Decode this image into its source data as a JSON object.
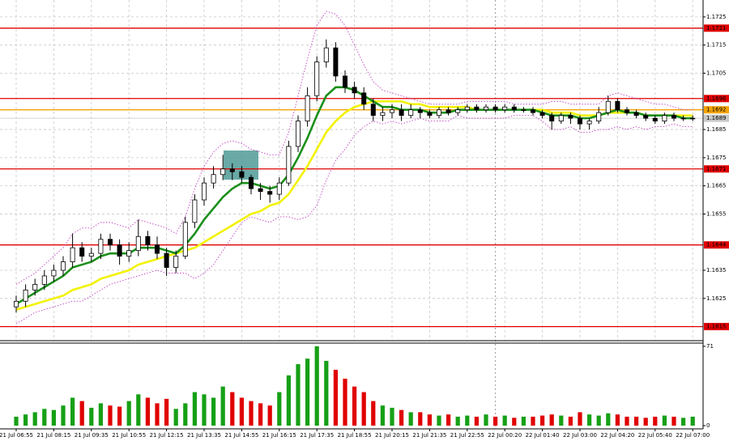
{
  "chart_data": [
    {
      "type": "candlestick",
      "categories": [
        "21 Jul 06:55",
        null,
        null,
        null,
        "21 Jul 08:15",
        null,
        null,
        null,
        "21 Jul 09:35",
        null,
        null,
        null,
        "21 Jul 10:55",
        null,
        null,
        null,
        "21 Jul 12:15",
        null,
        null,
        null,
        "21 Jul 13:35",
        null,
        null,
        null,
        "21 Jul 14:55",
        null,
        null,
        null,
        "21 Jul 16:15",
        null,
        null,
        null,
        "21 Jul 17:35",
        null,
        null,
        null,
        "21 Jul 18:55",
        null,
        null,
        null,
        "21 Jul 20:15",
        null,
        null,
        null,
        "21 Jul 21:35",
        null,
        null,
        null,
        "21 Jul 22:55",
        null,
        null,
        null,
        "22 Jul 00:20",
        null,
        null,
        null,
        "22 Jul 01:40",
        null,
        null,
        null,
        "22 Jul 03:00",
        null,
        null,
        null,
        "22 Jul 04:20",
        null,
        null,
        null,
        "22 Jul 05:40",
        null,
        null,
        null,
        "22 Jul 07:00"
      ],
      "open": [
        1.1622,
        1.1624,
        1.1628,
        1.163,
        1.1633,
        1.1635,
        1.1638,
        1.1643,
        1.164,
        1.1641,
        1.1646,
        1.1644,
        1.164,
        1.1642,
        1.1647,
        1.1644,
        1.1641,
        1.1636,
        1.164,
        1.1652,
        1.166,
        1.1666,
        1.1669,
        1.1671,
        1.167,
        1.1668,
        1.1664,
        1.1663,
        1.1662,
        1.1666,
        1.1679,
        1.1688,
        1.1697,
        1.1709,
        1.1714,
        1.1704,
        1.17,
        1.1698,
        1.1694,
        1.169,
        1.1691,
        1.1692,
        1.169,
        1.1692,
        1.1691,
        1.169,
        1.1692,
        1.1691,
        1.1692,
        1.1693,
        1.1692,
        1.1693,
        1.1692,
        1.1693,
        1.1692,
        1.1692,
        1.1691,
        1.169,
        1.1688,
        1.169,
        1.1689,
        1.1687,
        1.1688,
        1.1691,
        1.1695,
        1.1692,
        1.1691,
        1.169,
        1.1689,
        1.1688,
        1.169,
        1.1689,
        1.1689
      ],
      "high": [
        1.1626,
        1.163,
        1.1632,
        1.1635,
        1.1637,
        1.164,
        1.1648,
        1.1645,
        1.1643,
        1.1648,
        1.1648,
        1.1646,
        1.1645,
        1.1653,
        1.1649,
        1.1647,
        1.1643,
        1.1642,
        1.1654,
        1.1662,
        1.1668,
        1.1672,
        1.1676,
        1.1673,
        1.1672,
        1.1669,
        1.1666,
        1.1665,
        1.1668,
        1.1681,
        1.169,
        1.17,
        1.1711,
        1.1717,
        1.1716,
        1.1706,
        1.1702,
        1.17,
        1.1696,
        1.1693,
        1.1694,
        1.1694,
        1.1694,
        1.1693,
        1.1692,
        1.1693,
        1.1693,
        1.1693,
        1.1694,
        1.1694,
        1.1694,
        1.1694,
        1.1694,
        1.1694,
        1.1693,
        1.1693,
        1.1692,
        1.1691,
        1.1691,
        1.1691,
        1.169,
        1.1689,
        1.1693,
        1.1697,
        1.1696,
        1.1693,
        1.1692,
        1.1691,
        1.169,
        1.1691,
        1.1691,
        1.169,
        1.169
      ],
      "low": [
        1.162,
        1.1622,
        1.1626,
        1.1628,
        1.1631,
        1.1633,
        1.1636,
        1.1638,
        1.1638,
        1.1639,
        1.1642,
        1.1637,
        1.1638,
        1.164,
        1.1642,
        1.1639,
        1.1633,
        1.1634,
        1.1639,
        1.165,
        1.1658,
        1.1664,
        1.1667,
        1.1667,
        1.1666,
        1.1662,
        1.166,
        1.1659,
        1.166,
        1.1665,
        1.1677,
        1.1686,
        1.1695,
        1.1707,
        1.1702,
        1.1698,
        1.1696,
        1.1692,
        1.1688,
        1.1688,
        1.1689,
        1.1688,
        1.1689,
        1.1689,
        1.1689,
        1.1689,
        1.169,
        1.169,
        1.1691,
        1.1691,
        1.1691,
        1.1691,
        1.1691,
        1.1691,
        1.1691,
        1.169,
        1.1689,
        1.1685,
        1.1687,
        1.1687,
        1.1685,
        1.1685,
        1.1687,
        1.169,
        1.1691,
        1.169,
        1.1689,
        1.1688,
        1.1687,
        1.1687,
        1.1688,
        1.1688,
        1.1688
      ],
      "close": [
        1.1624,
        1.1628,
        1.163,
        1.1633,
        1.1635,
        1.1638,
        1.1643,
        1.164,
        1.1641,
        1.1646,
        1.1644,
        1.164,
        1.1642,
        1.1647,
        1.1644,
        1.1641,
        1.1636,
        1.164,
        1.1652,
        1.166,
        1.1666,
        1.1669,
        1.1671,
        1.167,
        1.1668,
        1.1664,
        1.1663,
        1.1662,
        1.1666,
        1.1679,
        1.1688,
        1.1697,
        1.1709,
        1.1714,
        1.1704,
        1.17,
        1.1698,
        1.1694,
        1.169,
        1.1691,
        1.1692,
        1.169,
        1.1692,
        1.1691,
        1.169,
        1.1692,
        1.1691,
        1.1692,
        1.1693,
        1.1692,
        1.1693,
        1.1692,
        1.1693,
        1.1692,
        1.1692,
        1.1691,
        1.169,
        1.1688,
        1.169,
        1.1689,
        1.1687,
        1.1688,
        1.1691,
        1.1695,
        1.1692,
        1.1691,
        1.169,
        1.1689,
        1.1688,
        1.169,
        1.1689,
        1.1689,
        1.1689
      ],
      "series": [
        {
          "color": "#c040c0",
          "style": "dotted",
          "values": [
            1.163,
            1.1632,
            1.1634,
            1.1637,
            1.164,
            1.1643,
            1.1648,
            1.165,
            1.165,
            1.1652,
            1.1652,
            1.1651,
            1.165,
            1.1653,
            1.1652,
            1.1651,
            1.165,
            1.1648,
            1.1654,
            1.1664,
            1.1672,
            1.1677,
            1.168,
            1.1681,
            1.168,
            1.1678,
            1.1677,
            1.1676,
            1.1676,
            1.1684,
            1.1697,
            1.171,
            1.1722,
            1.1727,
            1.1726,
            1.1722,
            1.1715,
            1.1708,
            1.1702,
            1.1699,
            1.1698,
            1.1697,
            1.1696,
            1.1695,
            1.1694,
            1.1694,
            1.1694,
            1.1694,
            1.1695,
            1.1695,
            1.1695,
            1.1695,
            1.1695,
            1.1694,
            1.1694,
            1.1694,
            1.1694,
            1.1695,
            1.1695,
            1.1694,
            1.1694,
            1.1694,
            1.1694,
            1.1697,
            1.1698,
            1.1697,
            1.1696,
            1.1695,
            1.1694,
            1.1694,
            1.1693,
            1.1692,
            1.1692
          ]
        },
        {
          "color": "#c040c0",
          "style": "dotted",
          "values": [
            1.1616,
            1.1618,
            1.162,
            1.1621,
            1.1622,
            1.1623,
            1.1624,
            1.1624,
            1.1626,
            1.1628,
            1.163,
            1.1631,
            1.1632,
            1.1633,
            1.1634,
            1.1635,
            1.1634,
            1.1634,
            1.1634,
            1.1632,
            1.1634,
            1.1637,
            1.1642,
            1.1647,
            1.1652,
            1.1654,
            1.1653,
            1.1652,
            1.1654,
            1.1654,
            1.1653,
            1.1654,
            1.1658,
            1.1667,
            1.1674,
            1.1678,
            1.1683,
            1.1686,
            1.1688,
            1.1687,
            1.1688,
            1.1687,
            1.1688,
            1.1689,
            1.1688,
            1.1688,
            1.1688,
            1.169,
            1.1689,
            1.1689,
            1.1689,
            1.1689,
            1.1689,
            1.169,
            1.169,
            1.169,
            1.1688,
            1.1685,
            1.1685,
            1.1686,
            1.1684,
            1.1684,
            1.1685,
            1.1685,
            1.1686,
            1.1685,
            1.1686,
            1.1685,
            1.1686,
            1.1686,
            1.1687,
            1.1686,
            1.1686
          ]
        },
        {
          "color": "#f2f200",
          "style": "solid",
          "values": [
            1.1621,
            1.1622,
            1.1623,
            1.1624,
            1.1625,
            1.1626,
            1.1628,
            1.1629,
            1.163,
            1.1632,
            1.1633,
            1.1634,
            1.1635,
            1.1637,
            1.1638,
            1.1639,
            1.164,
            1.1641,
            1.1642,
            1.1643,
            1.1645,
            1.1647,
            1.1649,
            1.1651,
            1.1653,
            1.1655,
            1.1656,
            1.1658,
            1.1659,
            1.1662,
            1.1667,
            1.1672,
            1.1678,
            1.1684,
            1.1688,
            1.1691,
            1.1693,
            1.1694,
            1.1695,
            1.1695,
            1.1695,
            1.1695,
            1.1694,
            1.1694,
            1.1693,
            1.1693,
            1.1693,
            1.1693,
            1.1693,
            1.1692,
            1.1692,
            1.1692,
            1.1692,
            1.1692,
            1.1692,
            1.1692,
            1.1692,
            1.1691,
            1.1691,
            1.1691,
            1.169,
            1.169,
            1.169,
            1.1691,
            1.1691,
            1.1691,
            1.1691,
            1.169,
            1.169,
            1.169,
            1.169,
            1.169,
            1.169
          ]
        },
        {
          "color": "#1a8f1a",
          "style": "solid",
          "values": [
            1.1623,
            1.1625,
            1.1627,
            1.1629,
            1.1631,
            1.1633,
            1.1636,
            1.1637,
            1.1638,
            1.164,
            1.1641,
            1.1641,
            1.1641,
            1.1643,
            1.1643,
            1.1643,
            1.1642,
            1.1641,
            1.1644,
            1.1648,
            1.1653,
            1.1657,
            1.1661,
            1.1664,
            1.1666,
            1.1666,
            1.1665,
            1.1664,
            1.1665,
            1.1669,
            1.1675,
            1.1682,
            1.169,
            1.1697,
            1.17,
            1.17,
            1.1699,
            1.1697,
            1.1695,
            1.1693,
            1.1693,
            1.1692,
            1.1692,
            1.1692,
            1.1691,
            1.1691,
            1.1691,
            1.1692,
            1.1692,
            1.1692,
            1.1692,
            1.1692,
            1.1692,
            1.1692,
            1.1692,
            1.1692,
            1.1691,
            1.169,
            1.169,
            1.169,
            1.1689,
            1.1689,
            1.169,
            1.1691,
            1.1692,
            1.1691,
            1.1691,
            1.169,
            1.169,
            1.169,
            1.169,
            1.1689,
            1.1689
          ]
        }
      ],
      "levels": [
        {
          "value": 1.1721,
          "color": "#e00000"
        },
        {
          "value": 1.1696,
          "color": "#e00000"
        },
        {
          "value": 1.1692,
          "color": "#f5a300"
        },
        {
          "value": 1.1671,
          "color": "#e00000"
        },
        {
          "value": 1.1644,
          "color": "#e00000"
        },
        {
          "value": 1.1615,
          "color": "#e00000"
        }
      ],
      "current_price": {
        "value": 1.1689,
        "color": "#c8c8c8"
      },
      "ylim": [
        1.161,
        1.1731
      ],
      "yticks": [
        1.1625,
        1.1635,
        1.1655,
        1.1665,
        1.1675,
        1.1685,
        1.1705,
        1.1715,
        1.1725
      ],
      "grid": true
    },
    {
      "type": "bar",
      "values": [
        8,
        10,
        12,
        15,
        14,
        18,
        25,
        22,
        16,
        20,
        18,
        17,
        22,
        28,
        25,
        20,
        24,
        15,
        20,
        30,
        28,
        25,
        35,
        30,
        25,
        22,
        20,
        18,
        30,
        45,
        55,
        60,
        71,
        58,
        50,
        42,
        35,
        30,
        22,
        18,
        16,
        14,
        12,
        12,
        10,
        9,
        10,
        8,
        9,
        8,
        10,
        8,
        9,
        7,
        8,
        8,
        9,
        10,
        9,
        8,
        12,
        10,
        9,
        11,
        10,
        8,
        8,
        7,
        8,
        9,
        8,
        7,
        8
      ],
      "up_color": "#16a016",
      "down_color": "#e00000",
      "ylim": [
        0,
        71
      ],
      "yticks": [
        0,
        71
      ]
    }
  ]
}
